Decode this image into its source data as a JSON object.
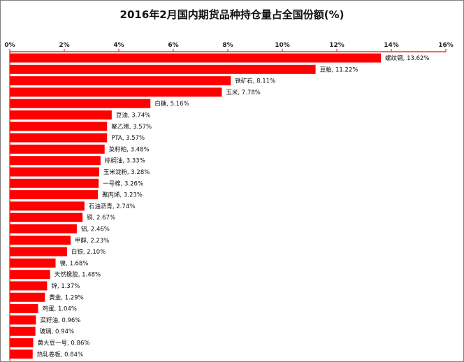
{
  "chart_data": {
    "type": "bar",
    "orientation": "horizontal",
    "title": "2016年2月国内期货品种持仓量占全国份额(%)",
    "xlabel": "",
    "ylabel": "",
    "xlim": [
      0,
      16
    ],
    "x_ticks": [
      "0%",
      "2%",
      "4%",
      "6%",
      "8%",
      "10%",
      "12%",
      "14%",
      "16%"
    ],
    "x_tick_values": [
      0,
      2,
      4,
      6,
      8,
      10,
      12,
      14,
      16
    ],
    "axis_position": "top",
    "grid": false,
    "bar_color": "#ff0000",
    "categories": [
      "螺纹钢",
      "豆粕",
      "铁矿石",
      "玉米",
      "白糖",
      "豆油",
      "聚乙烯",
      "PTA",
      "菜籽粕",
      "棕榈油",
      "玉米淀粉",
      "一号棉",
      "聚丙烯",
      "石油沥青",
      "铜",
      "铝",
      "甲醇",
      "白银",
      "镍",
      "天然橡胶",
      "锌",
      "黄金",
      "鸡蛋",
      "菜籽油",
      "玻璃",
      "黄大豆一号",
      "热轧卷板"
    ],
    "values": [
      13.62,
      11.22,
      8.11,
      7.78,
      5.16,
      3.74,
      3.57,
      3.57,
      3.48,
      3.33,
      3.28,
      3.26,
      3.23,
      2.74,
      2.67,
      2.46,
      2.23,
      2.1,
      1.68,
      1.48,
      1.37,
      1.29,
      1.04,
      0.96,
      0.94,
      0.86,
      0.84
    ],
    "data_labels": [
      "螺纹钢, 13.62%",
      "豆粕, 11.22%",
      "铁矿石, 8.11%",
      "玉米, 7.78%",
      "白糖, 5.16%",
      "豆油, 3.74%",
      "聚乙烯, 3.57%",
      "PTA, 3.57%",
      "菜籽粕, 3.48%",
      "棕榈油, 3.33%",
      "玉米淀粉, 3.28%",
      "一号棉, 3.26%",
      "聚丙烯, 3.23%",
      "石油沥青, 2.74%",
      "铜, 2.67%",
      "铝, 2.46%",
      "甲醇, 2.23%",
      "白银, 2.10%",
      "镍, 1.68%",
      "天然橡胶, 1.48%",
      "锌, 1.37%",
      "黄金, 1.29%",
      "鸡蛋, 1.04%",
      "菜籽油, 0.96%",
      "玻璃, 0.94%",
      "黄大豆一号, 0.86%",
      "热轧卷板, 0.84%"
    ],
    "colors": {
      "bar": "#ff0000",
      "axis": "#ff0000",
      "text": "#111111"
    }
  }
}
